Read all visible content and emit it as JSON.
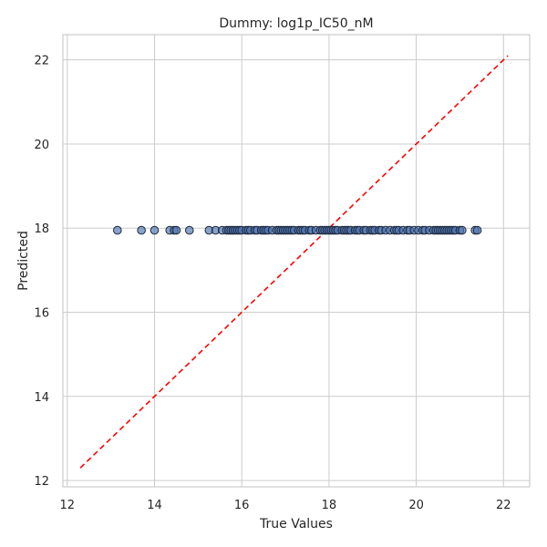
{
  "chart_data": {
    "type": "scatter",
    "title": "Dummy: log1p_IC50_nM",
    "xlabel": "True Values",
    "ylabel": "Predicted",
    "xlim": [
      11.9,
      22.6
    ],
    "ylim": [
      11.85,
      22.6
    ],
    "xticks": [
      12,
      14,
      16,
      18,
      20,
      22
    ],
    "yticks": [
      12,
      14,
      16,
      18,
      20,
      22
    ],
    "grid": true,
    "reference_line": {
      "style": "dashed",
      "color": "#ff0000",
      "from": [
        12.3,
        12.3
      ],
      "to": [
        22.1,
        22.1
      ]
    },
    "series": [
      {
        "marker_color": "#4c72b0",
        "x": [
          13.15,
          13.7,
          14.0,
          14.35,
          14.45,
          14.5,
          14.8,
          15.25,
          15.4,
          15.55,
          15.65,
          15.7,
          15.75,
          15.8,
          15.85,
          15.9,
          15.95,
          16.0,
          16.1,
          16.15,
          16.2,
          16.3,
          16.35,
          16.45,
          16.5,
          16.55,
          16.6,
          16.7,
          16.8,
          16.85,
          16.9,
          16.95,
          17.0,
          17.05,
          17.1,
          17.15,
          17.2,
          17.3,
          17.35,
          17.4,
          17.45,
          17.55,
          17.6,
          17.7,
          17.8,
          17.85,
          17.9,
          17.95,
          18.0,
          18.05,
          18.1,
          18.15,
          18.2,
          18.3,
          18.35,
          18.4,
          18.45,
          18.5,
          18.6,
          18.65,
          18.7,
          18.8,
          18.85,
          18.95,
          19.0,
          19.05,
          19.15,
          19.2,
          19.3,
          19.4,
          19.5,
          19.55,
          19.6,
          19.7,
          19.8,
          19.85,
          19.95,
          20.05,
          20.15,
          20.2,
          20.3,
          20.4,
          20.45,
          20.5,
          20.55,
          20.6,
          20.65,
          20.7,
          20.75,
          20.8,
          20.85,
          20.9,
          21.0,
          21.05,
          21.35,
          21.4
        ],
        "y": [
          17.95,
          17.95,
          17.95,
          17.95,
          17.95,
          17.95,
          17.95,
          17.95,
          17.95,
          17.95,
          17.95,
          17.95,
          17.95,
          17.95,
          17.95,
          17.95,
          17.95,
          17.95,
          17.95,
          17.95,
          17.95,
          17.95,
          17.95,
          17.95,
          17.95,
          17.95,
          17.95,
          17.95,
          17.95,
          17.95,
          17.95,
          17.95,
          17.95,
          17.95,
          17.95,
          17.95,
          17.95,
          17.95,
          17.95,
          17.95,
          17.95,
          17.95,
          17.95,
          17.95,
          17.95,
          17.95,
          17.95,
          17.95,
          17.95,
          17.95,
          17.95,
          17.95,
          17.95,
          17.95,
          17.95,
          17.95,
          17.95,
          17.95,
          17.95,
          17.95,
          17.95,
          17.95,
          17.95,
          17.95,
          17.95,
          17.95,
          17.95,
          17.95,
          17.95,
          17.95,
          17.95,
          17.95,
          17.95,
          17.95,
          17.95,
          17.95,
          17.95,
          17.95,
          17.95,
          17.95,
          17.95,
          17.95,
          17.95,
          17.95,
          17.95,
          17.95,
          17.95,
          17.95,
          17.95,
          17.95,
          17.95,
          17.95,
          17.95,
          17.95,
          17.95,
          17.95
        ]
      }
    ]
  }
}
